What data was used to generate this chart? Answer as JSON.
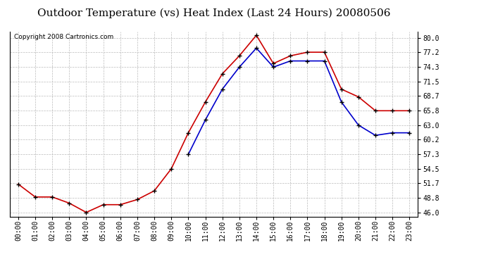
{
  "title": "Outdoor Temperature (vs) Heat Index (Last 24 Hours) 20080506",
  "copyright": "Copyright 2008 Cartronics.com",
  "hours": [
    "00:00",
    "01:00",
    "02:00",
    "03:00",
    "04:00",
    "05:00",
    "06:00",
    "07:00",
    "08:00",
    "09:00",
    "10:00",
    "11:00",
    "12:00",
    "13:00",
    "14:00",
    "15:00",
    "16:00",
    "17:00",
    "18:00",
    "19:00",
    "20:00",
    "21:00",
    "22:00",
    "23:00"
  ],
  "red_line": [
    51.5,
    49.0,
    49.0,
    47.8,
    46.0,
    47.5,
    47.5,
    48.5,
    50.2,
    54.5,
    61.5,
    67.5,
    73.0,
    76.5,
    80.5,
    75.0,
    76.5,
    77.2,
    77.2,
    70.0,
    68.5,
    65.8,
    65.8,
    65.8
  ],
  "blue_line": [
    null,
    null,
    null,
    null,
    null,
    null,
    null,
    null,
    null,
    null,
    57.3,
    64.0,
    70.0,
    74.3,
    78.0,
    74.3,
    75.5,
    75.5,
    75.5,
    67.5,
    63.0,
    61.0,
    61.5,
    61.5
  ],
  "red_color": "#cc0000",
  "blue_color": "#0000cc",
  "bg_color": "#ffffff",
  "grid_color": "#bbbbbb",
  "yticks": [
    46.0,
    48.8,
    51.7,
    54.5,
    57.3,
    60.2,
    63.0,
    65.8,
    68.7,
    71.5,
    74.3,
    77.2,
    80.0
  ],
  "ylim": [
    45.2,
    81.2
  ],
  "title_fontsize": 11,
  "copyright_fontsize": 6.5,
  "tick_fontsize": 7,
  "marker": "+",
  "marker_size": 4,
  "line_width": 1.2
}
